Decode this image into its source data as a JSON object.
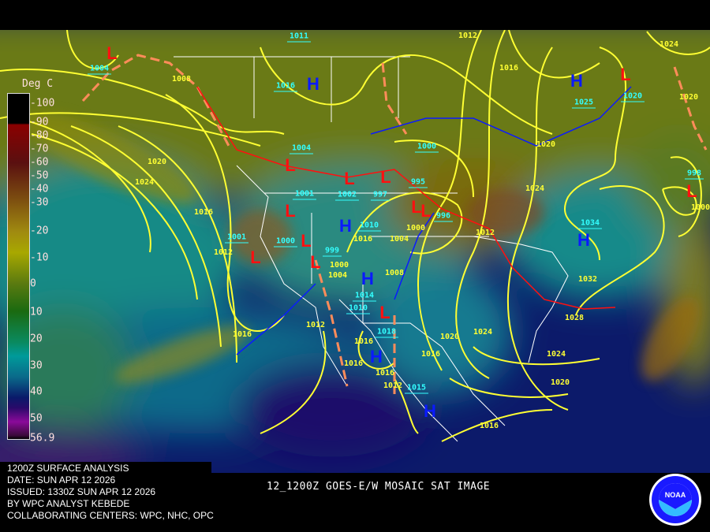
{
  "info_lines": [
    "1200Z SURFACE ANALYSIS",
    "DATE: SUN APR 12 2026",
    "ISSUED: 1330Z SUN APR 12 2026",
    "BY WPC ANALYST KEBEDE",
    "COLLABORATING CENTERS: WPC, NHC, OPC"
  ],
  "image_title": "12_1200Z GOES-E/W MOSAIC SAT IMAGE",
  "colorbar": {
    "unit": "Deg C",
    "ticks": [
      "-100",
      "-90",
      "-80",
      "-70",
      "-60",
      "-50",
      "-40",
      "-30",
      "-20",
      "-10",
      "0",
      "10",
      "20",
      "30",
      "40",
      "50",
      "56.9"
    ]
  },
  "logo": {
    "text": "NOAA",
    "ring_text": "NATIONAL OCEANIC AND ATMOSPHERIC ADMINISTRATION - U.S. DEPARTMENT OF COMMERCE"
  },
  "colors": {
    "isobar": "#ffff33",
    "high": "#0a1aff",
    "low": "#ff1010",
    "center_pressure": "#33ffff",
    "trough": "#ff8c5a",
    "cold_front": "#0a1aff",
    "warm_front": "#ff1010"
  },
  "pressure_centers": [
    {
      "type": "H",
      "pressure": "1016"
    },
    {
      "type": "H",
      "pressure": "1025"
    },
    {
      "type": "H",
      "pressure": "1010"
    },
    {
      "type": "H",
      "pressure": "1014"
    },
    {
      "type": "H",
      "pressure": "1018"
    },
    {
      "type": "H",
      "pressure": "1015"
    },
    {
      "type": "H",
      "pressure": "1034"
    },
    {
      "type": "L",
      "pressure": "1004"
    },
    {
      "type": "L",
      "pressure": "1020"
    },
    {
      "type": "L",
      "pressure": "1004"
    },
    {
      "type": "L",
      "pressure": "1002"
    },
    {
      "type": "L",
      "pressure": "997"
    },
    {
      "type": "L",
      "pressure": "995"
    },
    {
      "type": "L",
      "pressure": "1001"
    },
    {
      "type": "L",
      "pressure": "1001"
    },
    {
      "type": "L",
      "pressure": "1000"
    },
    {
      "type": "L",
      "pressure": "999"
    },
    {
      "type": "L",
      "pressure": "1010"
    },
    {
      "type": "L",
      "pressure": "998"
    },
    {
      "type": "L",
      "pressure": "1000"
    },
    {
      "type": "L",
      "pressure": "1011"
    },
    {
      "type": "L",
      "pressure": "996"
    }
  ],
  "isobar_labels": [
    "1012",
    "1016",
    "1020",
    "1024",
    "1020",
    "1024",
    "1008",
    "1020",
    "1024",
    "1016",
    "1012",
    "1000",
    "1004",
    "1008",
    "1004",
    "1000",
    "1016",
    "1012",
    "1016",
    "1016",
    "1016",
    "1012",
    "1016",
    "1020",
    "1012",
    "1032",
    "1028",
    "1024",
    "1024",
    "1020",
    "1016",
    "1000",
    "1016"
  ]
}
